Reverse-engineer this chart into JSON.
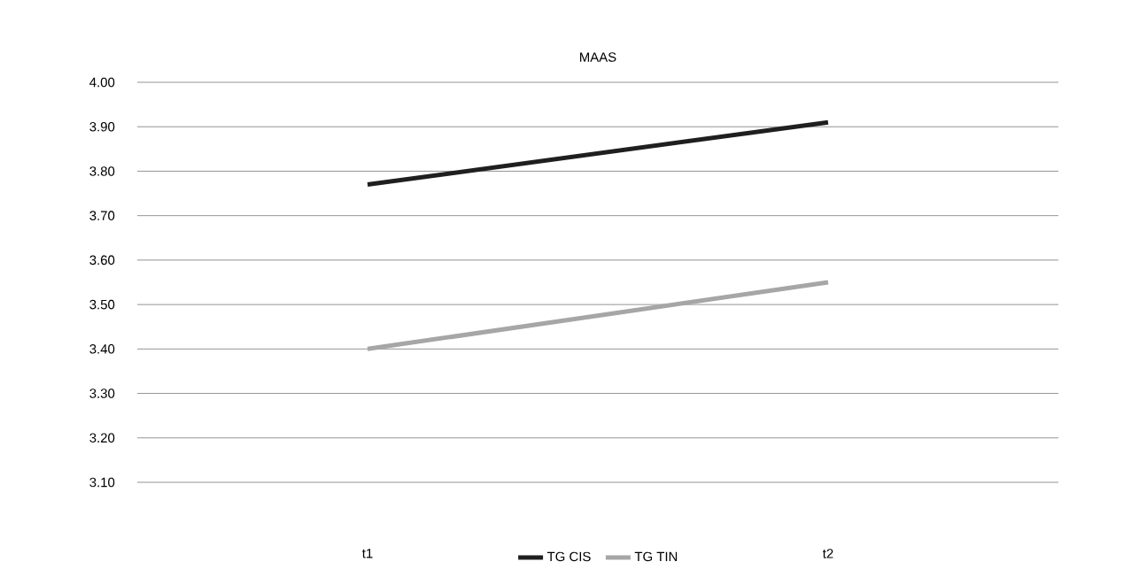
{
  "chart_data": {
    "type": "line",
    "title": "MAAS",
    "categories": [
      "t1",
      "t2"
    ],
    "series": [
      {
        "name": "TG CIS",
        "color": "#1f1f1f",
        "values": [
          3.77,
          3.91
        ]
      },
      {
        "name": "TG TIN",
        "color": "#a6a6a6",
        "values": [
          3.4,
          3.55
        ]
      }
    ],
    "ylim": [
      3.1,
      4.0
    ],
    "yticks": [
      {
        "value": 3.1,
        "label": "3.10"
      },
      {
        "value": 3.2,
        "label": "3.20"
      },
      {
        "value": 3.3,
        "label": "3.30"
      },
      {
        "value": 3.4,
        "label": "3.40"
      },
      {
        "value": 3.5,
        "label": "3.50"
      },
      {
        "value": 3.6,
        "label": "3.60"
      },
      {
        "value": 3.7,
        "label": "3.70"
      },
      {
        "value": 3.8,
        "label": "3.80"
      },
      {
        "value": 3.9,
        "label": "3.90"
      },
      {
        "value": 4.0,
        "label": "4.00"
      }
    ],
    "grid": "y",
    "legend": "bottom",
    "marker": "none",
    "line_style": "solid"
  }
}
